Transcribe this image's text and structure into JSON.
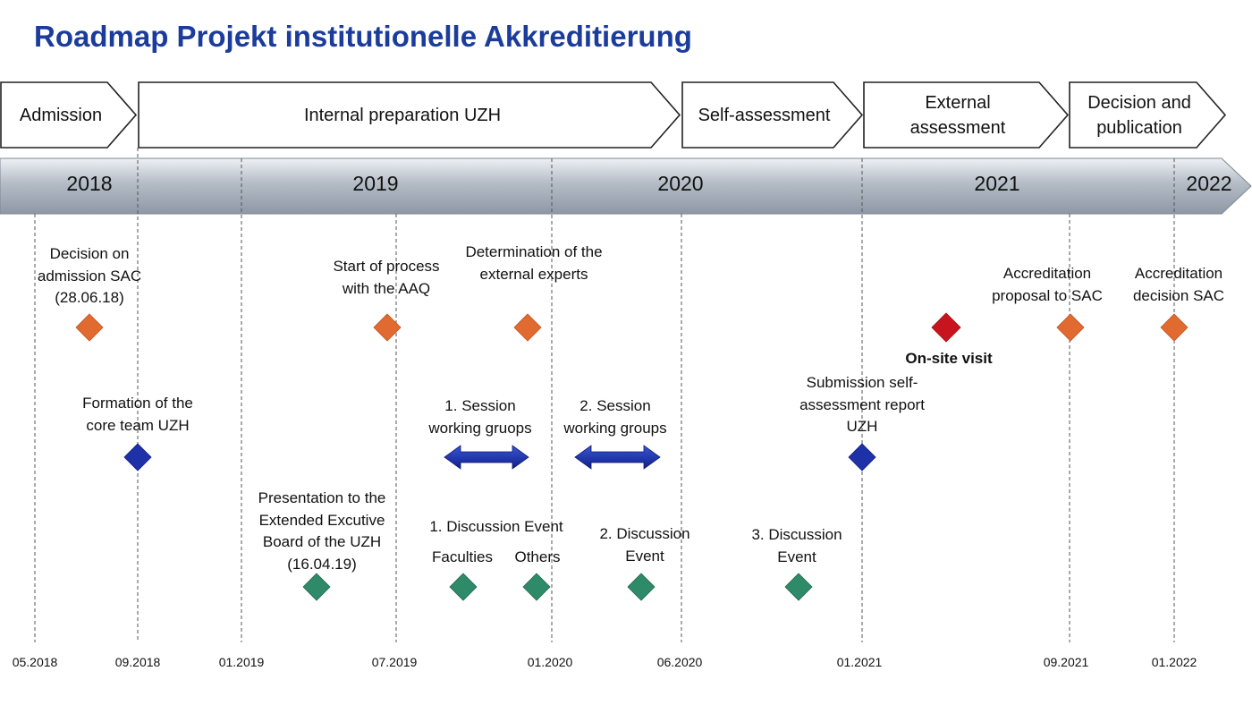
{
  "title": "Roadmap Projekt institutionelle Akkreditierung",
  "phases": [
    {
      "label": "Admission"
    },
    {
      "label": "Internal preparation UZH"
    },
    {
      "label": "Self-assessment"
    },
    {
      "label": "External assessment"
    },
    {
      "label": "Decision and publication"
    }
  ],
  "years": [
    "2018",
    "2019",
    "2020",
    "2021",
    "2022"
  ],
  "dates": [
    "05.2018",
    "09.2018",
    "01.2019",
    "07.2019",
    "01.2020",
    "06.2020",
    "01.2021",
    "09.2021",
    "01.2022"
  ],
  "milestones": {
    "decision_admission": "Decision on admission SAC (28.06.18)",
    "start_process": "Start of process with the AAQ",
    "determination_experts": "Determination of the external experts",
    "accreditation_proposal": "Accreditation proposal to SAC",
    "accreditation_decision": "Accreditation decision SAC",
    "onsite_visit": "On-site visit",
    "core_team": "Formation of the core team UZH",
    "session1": "1. Session working gruops",
    "session2": "2. Session working groups",
    "submission_report": "Submission self-assessment report UZH",
    "presentation_board": "Presentation to the Extended Excutive Board of the UZH (16.04.19)",
    "discussion1": "1. Discussion Event",
    "discussion1_faculties": "Faculties",
    "discussion1_others": "Others",
    "discussion2": "2. Discussion Event",
    "discussion3": "3. Discussion Event"
  },
  "colors": {
    "title": "#1c3c9c",
    "orange": "#e06a30",
    "red": "#c8141e",
    "blue": "#1f31a8",
    "green": "#2e8a68",
    "timeline_bar": "#a4adb8"
  }
}
